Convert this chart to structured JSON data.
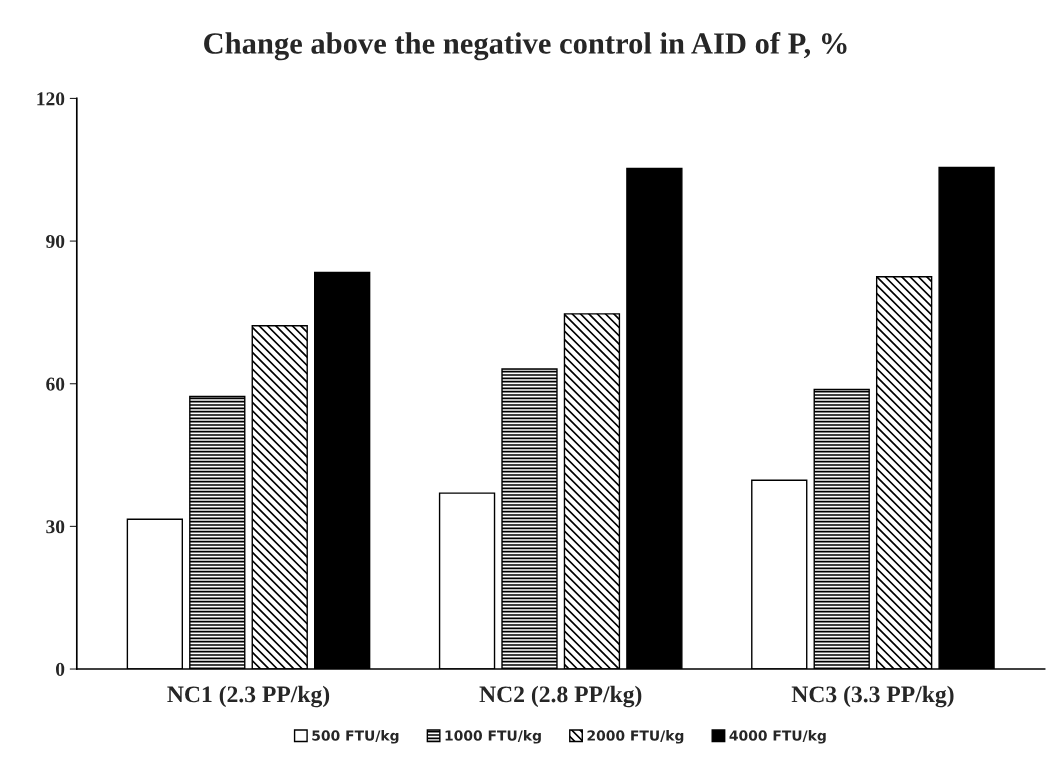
{
  "chart_data": {
    "type": "bar",
    "title": "Change above the negative control in AID of P, %",
    "categories": [
      "NC1 (2.3 PP/kg)",
      "NC2 (2.8 PP/kg)",
      "NC3 (3.3 PP/kg)"
    ],
    "series": [
      {
        "name": "500 FTU/kg",
        "color": "#ffffff",
        "values": [
          31.5,
          37.0,
          39.7
        ]
      },
      {
        "name": "1000 FTU/kg",
        "color": "#000000",
        "values": [
          57.3,
          63.1,
          58.8
        ]
      },
      {
        "name": "2000 FTU/kg",
        "color": "#000000",
        "values": [
          72.2,
          74.7,
          82.5
        ]
      },
      {
        "name": "4000 FTU/kg",
        "color": "#000000",
        "values": [
          83.4,
          105.3,
          105.5
        ]
      }
    ],
    "ylim": [
      0,
      120
    ],
    "yticks": [
      0,
      30,
      60,
      90,
      120
    ],
    "grid": false,
    "legend": "bottom"
  }
}
